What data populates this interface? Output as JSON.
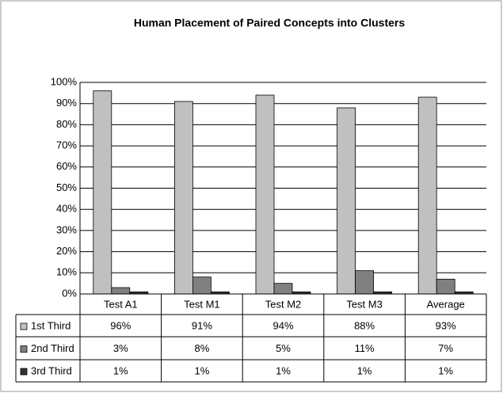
{
  "chart_data": {
    "type": "bar",
    "title": "Human Placement of Paired Concepts into Clusters",
    "categories": [
      "Test A1",
      "Test M1",
      "Test M2",
      "Test M3",
      "Average"
    ],
    "series": [
      {
        "name": "1st Third",
        "color": "#c0c0c0",
        "values": [
          96,
          91,
          94,
          88,
          93
        ],
        "value_labels": [
          "96%",
          "91%",
          "94%",
          "88%",
          "93%"
        ]
      },
      {
        "name": "2nd Third",
        "color": "#808080",
        "values": [
          3,
          8,
          5,
          11,
          7
        ],
        "value_labels": [
          "3%",
          "8%",
          "5%",
          "11%",
          "7%"
        ]
      },
      {
        "name": "3rd Third",
        "color": "#333333",
        "values": [
          1,
          1,
          1,
          1,
          1
        ],
        "value_labels": [
          "1%",
          "1%",
          "1%",
          "1%",
          "1%"
        ]
      }
    ],
    "ylim": [
      0,
      100
    ],
    "yticks": [
      {
        "value": 0,
        "label": "0%"
      },
      {
        "value": 10,
        "label": "10%"
      },
      {
        "value": 20,
        "label": "20%"
      },
      {
        "value": 30,
        "label": "30%"
      },
      {
        "value": 40,
        "label": "40%"
      },
      {
        "value": 50,
        "label": "50%"
      },
      {
        "value": 60,
        "label": "60%"
      },
      {
        "value": 70,
        "label": "70%"
      },
      {
        "value": 80,
        "label": "80%"
      },
      {
        "value": 90,
        "label": "90%"
      },
      {
        "value": 100,
        "label": "100%"
      }
    ],
    "grid": true
  }
}
